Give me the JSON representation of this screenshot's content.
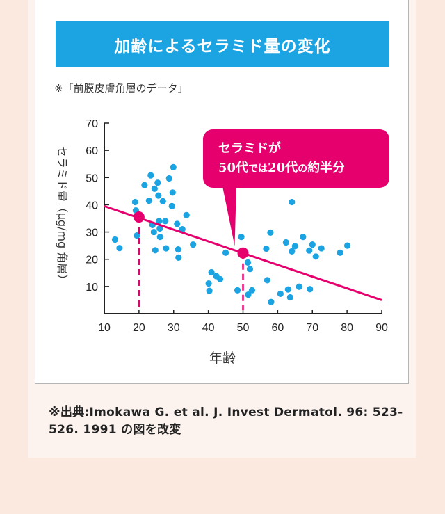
{
  "banner_title": "加齢によるセラミド量の変化",
  "note": "※「前膜皮膚角層のデータ」",
  "callout": {
    "line1": "セラミドが",
    "line2a": "50代",
    "line2b": "では",
    "line2c": "20代",
    "line2d": "の",
    "line2e": "約半分"
  },
  "source": "※出典:Imokawa G. et al. J. Invest Dermatol. 96: 523-526. 1991 の図を改変",
  "colors": {
    "banner": "#1ba3e2",
    "accent": "#e5006e",
    "points": "#1ba3e2",
    "background": "#fbe9df"
  },
  "chart_data": {
    "type": "scatter",
    "xlabel": "年齢",
    "ylabel": "セラミド量（μg/mg 角層）",
    "xlim": [
      10,
      90
    ],
    "ylim": [
      0,
      70
    ],
    "xticks": [
      10,
      20,
      30,
      40,
      50,
      60,
      70,
      80,
      90
    ],
    "yticks": [
      10,
      20,
      30,
      40,
      50,
      60,
      70
    ],
    "grid": false,
    "points": [
      [
        13.1,
        27.2
      ],
      [
        14.4,
        24.1
      ],
      [
        18.9,
        41.0
      ],
      [
        19.1,
        37.9
      ],
      [
        19.4,
        28.7
      ],
      [
        21.6,
        47.2
      ],
      [
        22.9,
        41.5
      ],
      [
        23.4,
        50.8
      ],
      [
        23.9,
        32.6
      ],
      [
        24.3,
        30.0
      ],
      [
        24.5,
        45.9
      ],
      [
        24.7,
        23.3
      ],
      [
        25.4,
        48.1
      ],
      [
        25.6,
        43.4
      ],
      [
        25.8,
        34.0
      ],
      [
        26.0,
        31.3
      ],
      [
        26.1,
        28.2
      ],
      [
        26.9,
        41.3
      ],
      [
        27.6,
        34.0
      ],
      [
        27.8,
        24.0
      ],
      [
        28.7,
        49.7
      ],
      [
        29.5,
        39.5
      ],
      [
        29.7,
        44.5
      ],
      [
        29.9,
        53.8
      ],
      [
        31.0,
        33.0
      ],
      [
        31.3,
        23.6
      ],
      [
        31.4,
        20.6
      ],
      [
        32.5,
        31.0
      ],
      [
        33.7,
        36.2
      ],
      [
        35.6,
        25.4
      ],
      [
        40.1,
        11.1
      ],
      [
        40.3,
        8.4
      ],
      [
        40.9,
        15.2
      ],
      [
        42.3,
        13.8
      ],
      [
        43.4,
        12.7
      ],
      [
        45.0,
        22.4
      ],
      [
        48.4,
        8.6
      ],
      [
        49.5,
        28.2
      ],
      [
        51.4,
        18.8
      ],
      [
        51.5,
        7.0
      ],
      [
        52.0,
        16.4
      ],
      [
        52.6,
        8.6
      ],
      [
        56.7,
        23.9
      ],
      [
        57.0,
        12.3
      ],
      [
        57.9,
        29.8
      ],
      [
        58.1,
        4.3
      ],
      [
        60.8,
        7.3
      ],
      [
        62.4,
        26.2
      ],
      [
        63.0,
        8.9
      ],
      [
        63.6,
        6.0
      ],
      [
        64.1,
        22.9
      ],
      [
        64.1,
        41.0
      ],
      [
        65.0,
        24.8
      ],
      [
        66.2,
        9.9
      ],
      [
        67.3,
        28.2
      ],
      [
        69.1,
        23.2
      ],
      [
        69.3,
        9.0
      ],
      [
        70.0,
        25.4
      ],
      [
        71.0,
        21.0
      ],
      [
        72.6,
        24.0
      ],
      [
        78.0,
        22.4
      ],
      [
        80.1,
        25.0
      ]
    ],
    "trendline": {
      "x1": 10,
      "y1": 39.5,
      "x2": 90,
      "y2": 5.0
    },
    "highlights": [
      {
        "x": 20,
        "y": 35.5
      },
      {
        "x": 50,
        "y": 22.3
      }
    ]
  }
}
